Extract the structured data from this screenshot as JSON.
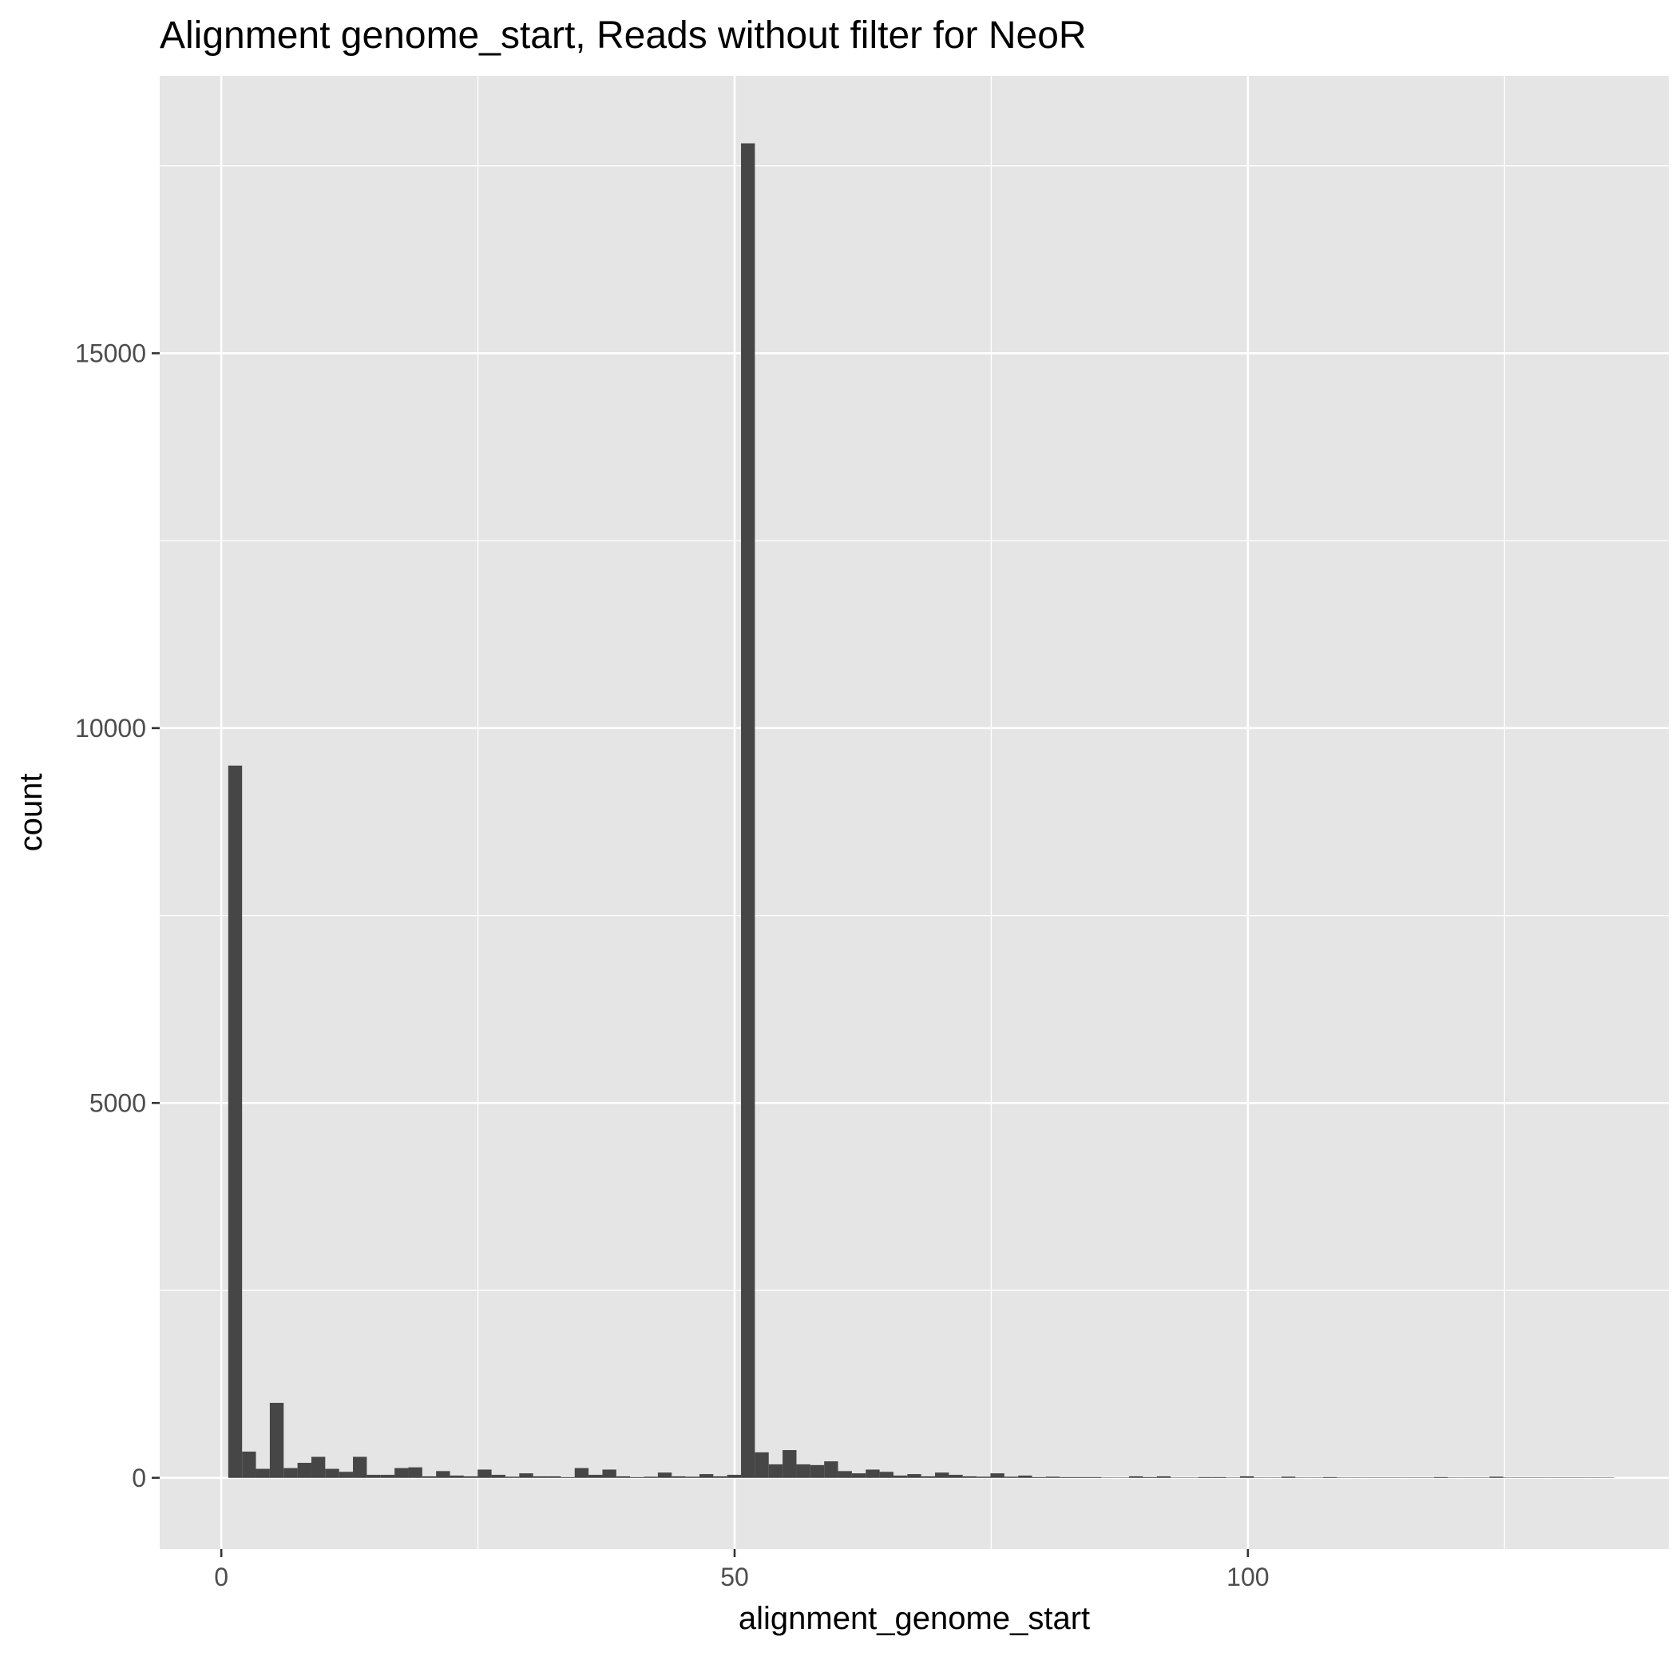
{
  "chart_data": {
    "type": "bar",
    "title": "Alignment genome_start, Reads without filter for NeoR",
    "xlabel": "alignment_genome_start",
    "ylabel": "count",
    "xlim": [
      -6,
      141
    ],
    "ylim": [
      -950,
      18700
    ],
    "x_ticks": [
      0,
      50,
      100
    ],
    "x_tick_labels": [
      "0",
      "50",
      "100"
    ],
    "y_ticks": [
      0,
      5000,
      10000,
      15000
    ],
    "y_tick_labels": [
      "0",
      "5000",
      "10000",
      "15000"
    ],
    "bin_width": 1.35,
    "x": [
      1.35,
      2.7,
      4.05,
      5.4,
      6.75,
      8.1,
      9.45,
      10.8,
      12.15,
      13.5,
      14.85,
      16.2,
      17.55,
      18.9,
      20.25,
      21.6,
      22.95,
      24.3,
      25.65,
      27.0,
      28.35,
      29.7,
      31.05,
      32.4,
      33.75,
      35.1,
      36.45,
      37.8,
      39.15,
      40.5,
      41.85,
      43.2,
      44.55,
      45.9,
      47.25,
      48.6,
      49.95,
      51.3,
      52.65,
      54.0,
      55.35,
      56.7,
      58.05,
      59.4,
      60.75,
      62.1,
      63.45,
      64.8,
      66.15,
      67.5,
      68.85,
      70.2,
      71.55,
      72.9,
      74.25,
      75.6,
      76.95,
      78.3,
      79.65,
      81.0,
      82.35,
      83.7,
      85.05,
      86.4,
      87.75,
      89.1,
      90.45,
      91.8,
      93.15,
      94.5,
      95.85,
      97.2,
      98.55,
      99.9,
      101.25,
      102.6,
      103.95,
      105.3,
      106.65,
      108.0,
      109.35,
      110.7,
      112.05,
      113.4,
      114.75,
      116.1,
      117.45,
      118.8,
      120.15,
      121.5,
      122.85,
      124.2,
      125.55,
      126.9,
      128.25,
      129.6,
      130.95,
      132.3,
      133.65,
      135.0
    ],
    "values": [
      9500,
      350,
      120,
      1000,
      130,
      200,
      280,
      120,
      80,
      280,
      40,
      40,
      130,
      140,
      20,
      90,
      30,
      20,
      110,
      40,
      15,
      60,
      20,
      20,
      10,
      130,
      40,
      110,
      20,
      10,
      15,
      70,
      20,
      15,
      50,
      20,
      40,
      17800,
      340,
      180,
      370,
      180,
      170,
      220,
      90,
      60,
      110,
      80,
      30,
      50,
      20,
      70,
      40,
      20,
      15,
      60,
      15,
      30,
      10,
      15,
      10,
      10,
      10,
      5,
      5,
      20,
      10,
      20,
      5,
      5,
      10,
      10,
      5,
      20,
      5,
      5,
      15,
      5,
      5,
      10,
      5,
      5,
      5,
      5,
      5,
      5,
      5,
      10,
      5,
      5,
      5,
      15,
      5,
      5,
      5,
      5,
      5,
      5,
      5,
      5
    ]
  }
}
